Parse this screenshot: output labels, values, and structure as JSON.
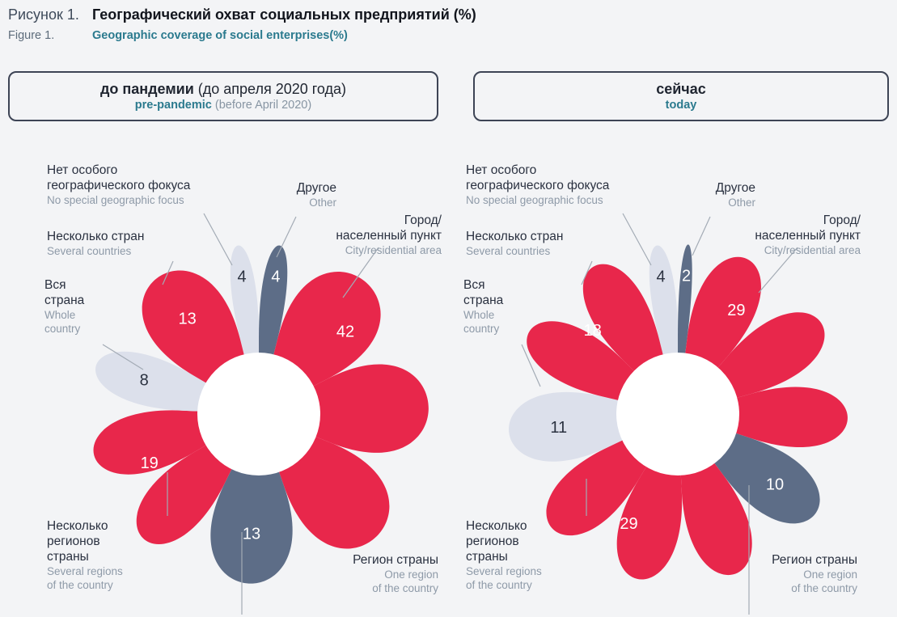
{
  "figure": {
    "label_ru": "Рисунок 1.",
    "title_ru": "Географический охват социальных предприятий (%)",
    "label_en": "Figure 1.",
    "title_en": "Geographic coverage of social enterprises(%)"
  },
  "panels": [
    {
      "title_ru_bold": "до пандемии",
      "title_ru_rest": " (до апреля 2020 года)",
      "title_en_bold": "pre-pandemic",
      "title_en_rest": " (before April 2020)"
    },
    {
      "title_ru_bold": "сейчас",
      "title_ru_rest": "",
      "title_en_bold": "today",
      "title_en_rest": ""
    }
  ],
  "chart_data": {
    "type": "pie",
    "variant": "flower-petal-pie",
    "unit": "%",
    "palette": {
      "red": "#e8274b",
      "slate": "#5d6d87",
      "light": "#dce0eb"
    },
    "categories": [
      {
        "id": "no-special-focus",
        "ru": "Нет особого географического фокуса",
        "en": "No special geographic focus",
        "ru_lines": [
          "Нет особого",
          "географического фокуса"
        ],
        "en_lines": [
          "No special geographic focus"
        ],
        "color": "light"
      },
      {
        "id": "other",
        "ru": "Другое",
        "en": "Other",
        "ru_lines": [
          "Другое"
        ],
        "en_lines": [
          "Other"
        ],
        "color": "slate"
      },
      {
        "id": "city",
        "ru": "Город/населенный пункт",
        "en": "City/residential area",
        "ru_lines": [
          "Город/",
          "населенный пункт"
        ],
        "en_lines": [
          "City/residential area"
        ],
        "color": "red"
      },
      {
        "id": "one-region",
        "ru": "Регион страны",
        "en": "One region of the country",
        "ru_lines": [
          "Регион страны"
        ],
        "en_lines": [
          "One region",
          "of the country"
        ],
        "color": "slate"
      },
      {
        "id": "several-regions",
        "ru": "Несколько регионов страны",
        "en": "Several regions of the country",
        "ru_lines": [
          "Несколько",
          "регионов",
          "страны"
        ],
        "en_lines": [
          "Several regions",
          "of the country"
        ],
        "color": "red"
      },
      {
        "id": "whole-country",
        "ru": "Вся страна",
        "en": "Whole country",
        "ru_lines": [
          "Вся",
          "страна"
        ],
        "en_lines": [
          "Whole",
          "country"
        ],
        "color": "light"
      },
      {
        "id": "several-countries",
        "ru": "Несколько стран",
        "en": "Several countries",
        "ru_lines": [
          "Несколько стран"
        ],
        "en_lines": [
          "Several countries"
        ],
        "color": "red"
      }
    ],
    "series": [
      {
        "name": "pre-pandemic",
        "values": [
          4,
          4,
          42,
          13,
          19,
          8,
          13
        ]
      },
      {
        "name": "today",
        "values": [
          4,
          2,
          29,
          10,
          29,
          11,
          18
        ]
      }
    ]
  }
}
